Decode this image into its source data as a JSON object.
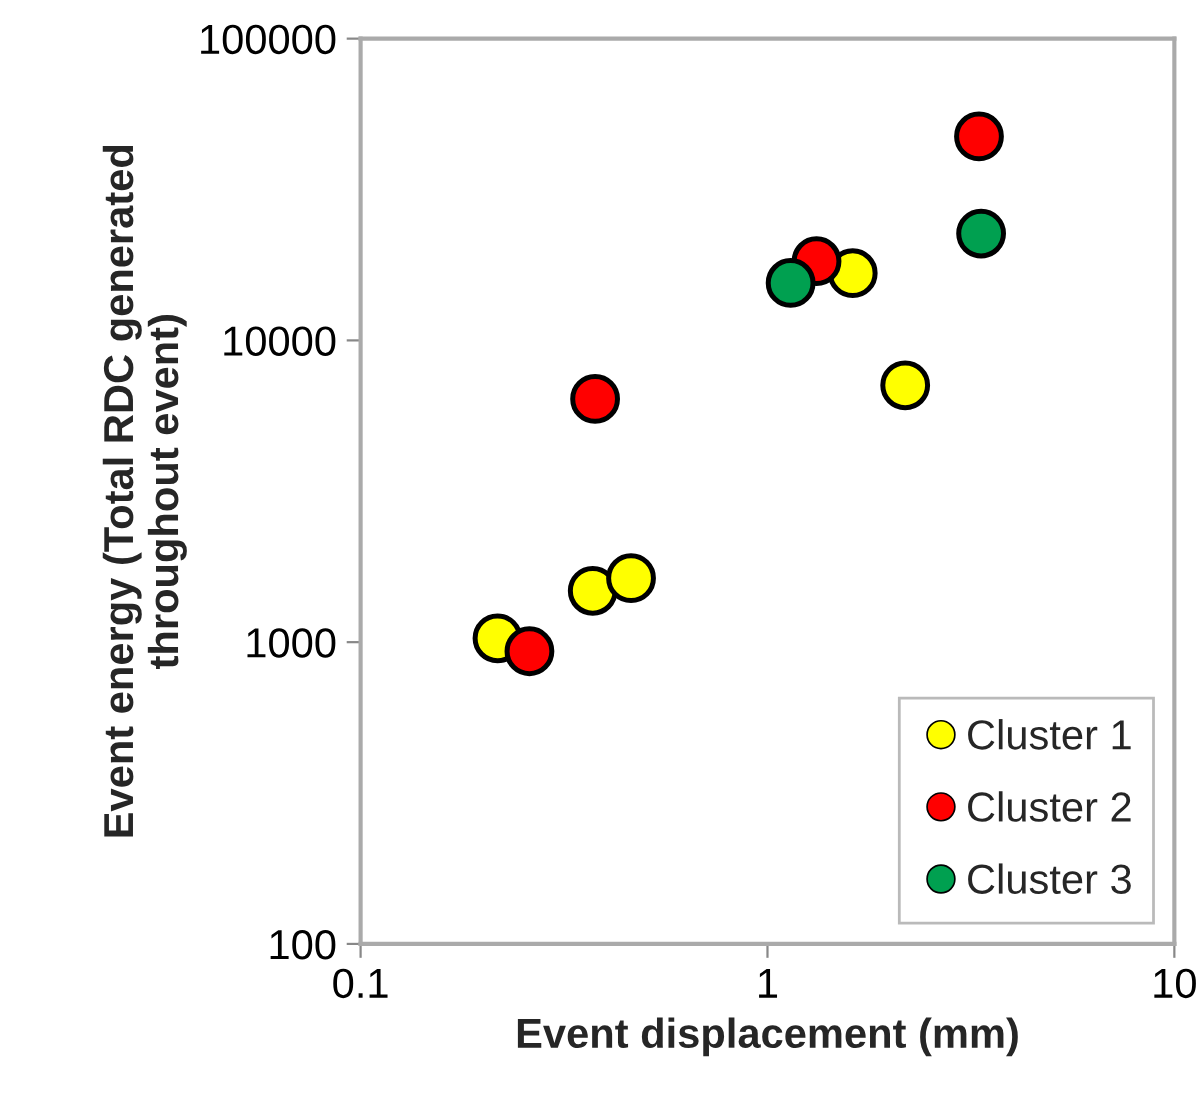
{
  "chart_data": {
    "type": "scatter",
    "xlabel": "Event displacement (mm)",
    "ylabel": "Event energy (Total RDC generated\nthroughout event)",
    "log": "xy",
    "xlim": [
      0.1,
      10
    ],
    "ylim": [
      100,
      100000
    ],
    "xticks": [
      0.1,
      1,
      10
    ],
    "yticks": [
      100,
      1000,
      10000,
      100000
    ],
    "grid": false,
    "legend": "bottom right",
    "marker": "circle",
    "series": [
      {
        "name": "Cluster 1",
        "color": "#ffff00",
        "x": [
          0.217,
          0.372,
          0.462,
          1.62,
          2.18
        ],
        "values": [
          1030,
          1480,
          1630,
          16700,
          7100
        ]
      },
      {
        "name": "Cluster 2",
        "color": "#ff0000",
        "x": [
          0.26,
          0.377,
          1.32,
          3.31
        ],
        "values": [
          933,
          6400,
          18300,
          47400
        ]
      },
      {
        "name": "Cluster 3",
        "color": "#00a050",
        "x": [
          1.14,
          3.35
        ],
        "values": [
          15500,
          22600
        ]
      }
    ]
  }
}
